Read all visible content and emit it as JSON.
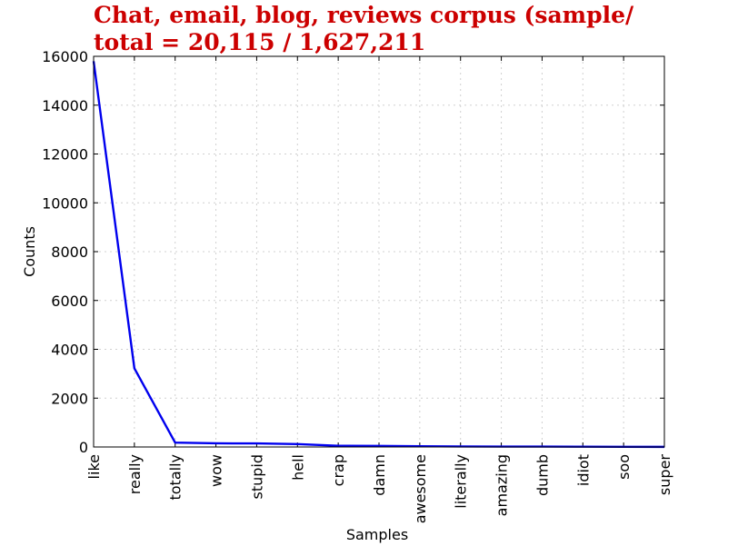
{
  "chart_data": {
    "type": "line",
    "title_lines": [
      "Chat, email, blog, reviews corpus (sample/",
      "total = 20,115 / 1,627,211"
    ],
    "xlabel": "Samples",
    "ylabel": "Counts",
    "categories": [
      "like",
      "really",
      "totally",
      "wow",
      "stupid",
      "hell",
      "crap",
      "damn",
      "awesome",
      "literally",
      "amazing",
      "dumb",
      "idiot",
      "soo",
      "super"
    ],
    "values": [
      15800,
      3220,
      180,
      150,
      145,
      120,
      50,
      45,
      30,
      22,
      18,
      15,
      10,
      8,
      5
    ],
    "ylim": [
      0,
      16000
    ],
    "yticks": [
      0,
      2000,
      4000,
      6000,
      8000,
      10000,
      12000,
      14000,
      16000
    ],
    "grid": true,
    "line_color": "#0000ee"
  }
}
